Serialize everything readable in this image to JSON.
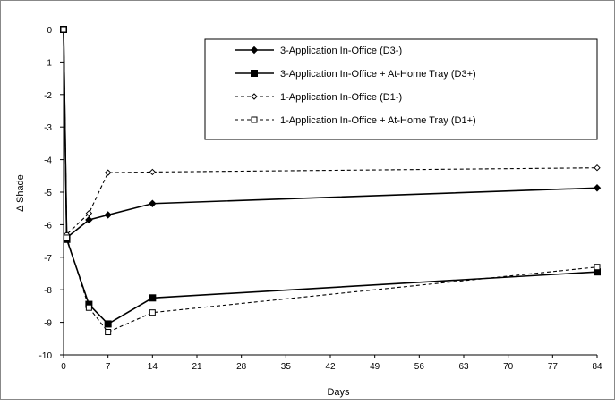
{
  "chart_data": {
    "type": "line",
    "title": "",
    "xlabel": "Days",
    "ylabel": "Δ Shade",
    "x_ticks": [
      0,
      7,
      14,
      21,
      28,
      35,
      42,
      49,
      56,
      63,
      70,
      77,
      84
    ],
    "y_ticks": [
      0,
      -1,
      -2,
      -3,
      -4,
      -5,
      -6,
      -7,
      -8,
      -9,
      -10
    ],
    "xlim": [
      0,
      84
    ],
    "ylim": [
      -10,
      0
    ],
    "grid": false,
    "legend_position": "top-right",
    "series": [
      {
        "name": "3-Application In-Office (D3-)",
        "marker": "filled-diamond",
        "line": "solid",
        "x": [
          0,
          0.5,
          4,
          7,
          14,
          84
        ],
        "y": [
          0,
          -6.4,
          -5.85,
          -5.7,
          -5.35,
          -4.87
        ]
      },
      {
        "name": "3-Application In-Office + At-Home Tray (D3+)",
        "marker": "filled-square",
        "line": "solid",
        "x": [
          0,
          0.5,
          4,
          7,
          14,
          84
        ],
        "y": [
          0,
          -6.45,
          -8.45,
          -9.05,
          -8.25,
          -7.45
        ]
      },
      {
        "name": "1-Application In-Office (D1-)",
        "marker": "open-diamond",
        "line": "dashed",
        "x": [
          0,
          0.5,
          4,
          7,
          14,
          84
        ],
        "y": [
          0,
          -6.3,
          -5.65,
          -4.4,
          -4.38,
          -4.25
        ]
      },
      {
        "name": "1-Application In-Office + At-Home Tray (D1+)",
        "marker": "open-square",
        "line": "dashed",
        "x": [
          0,
          0.5,
          4,
          7,
          14,
          84
        ],
        "y": [
          0,
          -6.4,
          -8.55,
          -9.3,
          -8.7,
          -7.3
        ]
      }
    ]
  }
}
